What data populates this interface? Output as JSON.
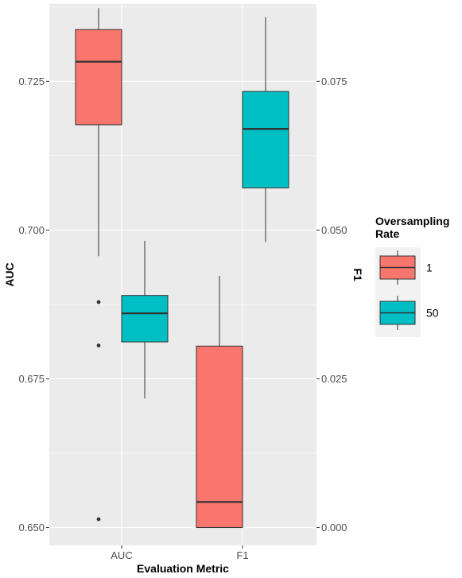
{
  "chart_data": {
    "type": "boxplot",
    "x_axis": {
      "title": "Evaluation Metric",
      "categories": [
        "AUC",
        "F1"
      ]
    },
    "y_axis_left": {
      "title": "AUC",
      "range": [
        0.647,
        0.738
      ],
      "ticks": [
        0.65,
        0.675,
        0.7,
        0.725
      ],
      "tick_labels": [
        "0.650",
        "0.675",
        "0.700",
        "0.725"
      ]
    },
    "y_axis_right": {
      "title": "F1",
      "range": [
        -0.003,
        0.088
      ],
      "ticks": [
        0.0,
        0.025,
        0.05,
        0.075
      ],
      "tick_labels": [
        "0.000",
        "0.025",
        "0.050",
        "0.075"
      ]
    },
    "legend": {
      "title_lines": [
        "Oversampling",
        "Rate"
      ],
      "position": "right",
      "entries": [
        {
          "label": "1",
          "color": "#F8766D"
        },
        {
          "label": "50",
          "color": "#00BFC4"
        }
      ]
    },
    "boxes": [
      {
        "category": "AUC",
        "group": "1",
        "color": "#F8766D",
        "axis": "AUC",
        "whisker_low": 0.6956,
        "q1": 0.7177,
        "median": 0.7283,
        "q3": 0.7337,
        "whisker_high": 0.7373,
        "outliers": [
          0.6879,
          0.6806,
          0.6514
        ]
      },
      {
        "category": "AUC",
        "group": "50",
        "color": "#00BFC4",
        "axis": "AUC",
        "whisker_low": 0.6717,
        "q1": 0.6812,
        "median": 0.686,
        "q3": 0.689,
        "whisker_high": 0.6982,
        "outliers": []
      },
      {
        "category": "F1",
        "group": "1",
        "color": "#F8766D",
        "axis": "F1",
        "whisker_low": 0.0,
        "q1": 0.0,
        "median": 0.0043,
        "q3": 0.0305,
        "whisker_high": 0.0423,
        "outliers": []
      },
      {
        "category": "F1",
        "group": "50",
        "color": "#00BFC4",
        "axis": "F1",
        "whisker_low": 0.048,
        "q1": 0.0571,
        "median": 0.067,
        "q3": 0.0733,
        "whisker_high": 0.0858,
        "outliers": []
      }
    ],
    "grid": true,
    "panel_background": "#EBEBEB"
  }
}
